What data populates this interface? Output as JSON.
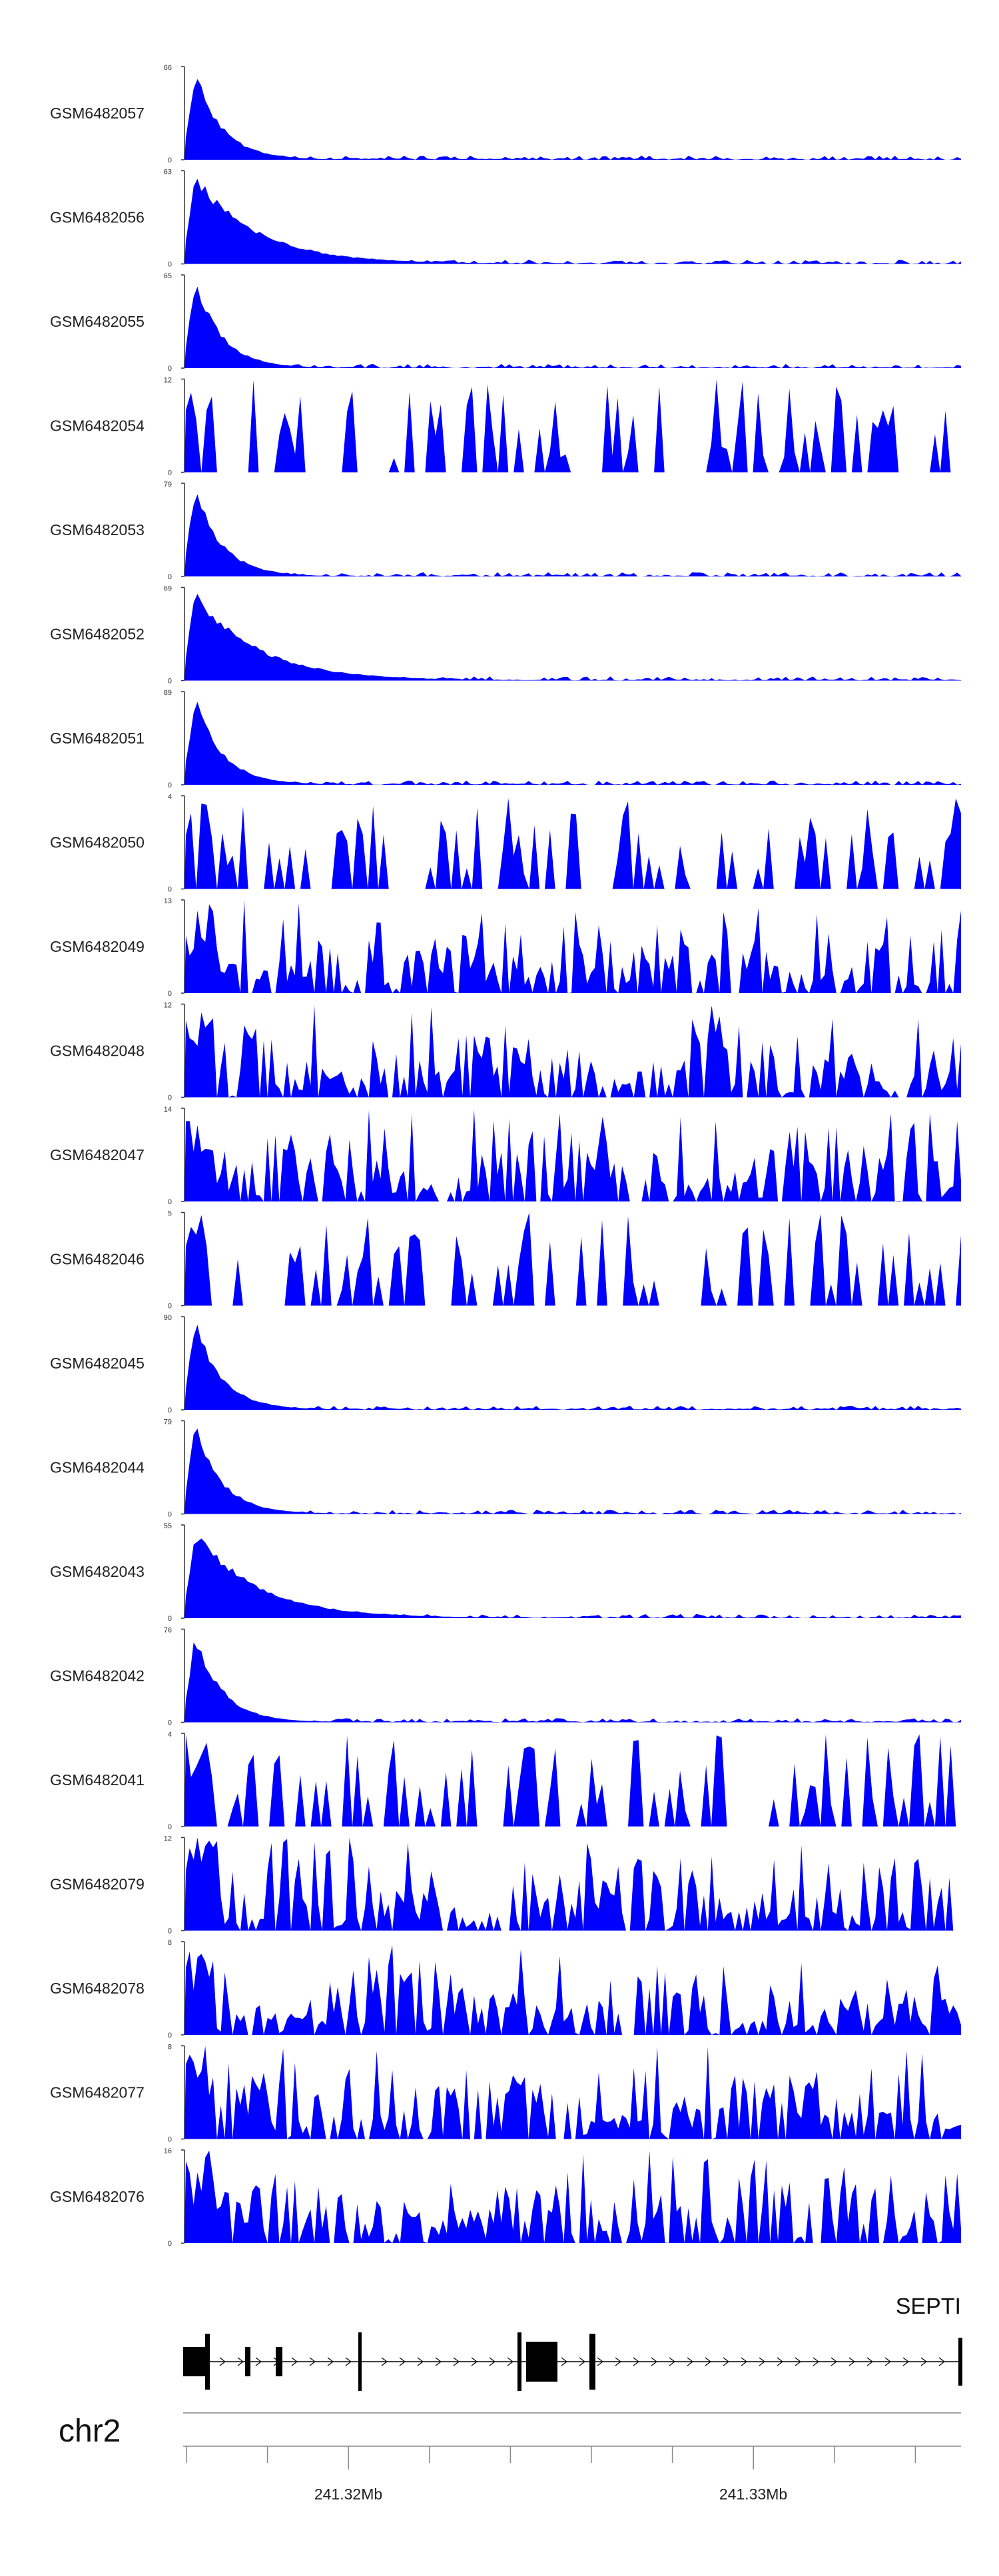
{
  "chart_data": {
    "type": "area",
    "color": "#0000ff",
    "tracks": [
      {
        "name": "GSM6482057",
        "max": 66,
        "pattern": "spike"
      },
      {
        "name": "GSM6482056",
        "max": 63,
        "pattern": "spike-broad"
      },
      {
        "name": "GSM6482055",
        "max": 65,
        "pattern": "spike"
      },
      {
        "name": "GSM6482054",
        "max": 12,
        "pattern": "sparse"
      },
      {
        "name": "GSM6482053",
        "max": 79,
        "pattern": "spike"
      },
      {
        "name": "GSM6482052",
        "max": 69,
        "pattern": "spike-broad"
      },
      {
        "name": "GSM6482051",
        "max": 89,
        "pattern": "spike"
      },
      {
        "name": "GSM6482050",
        "max": 4,
        "pattern": "sparse"
      },
      {
        "name": "GSM6482049",
        "max": 13,
        "pattern": "noisy"
      },
      {
        "name": "GSM6482048",
        "max": 12,
        "pattern": "noisy"
      },
      {
        "name": "GSM6482047",
        "max": 14,
        "pattern": "noisy"
      },
      {
        "name": "GSM6482046",
        "max": 5,
        "pattern": "sparse"
      },
      {
        "name": "GSM6482045",
        "max": 90,
        "pattern": "spike"
      },
      {
        "name": "GSM6482044",
        "max": 79,
        "pattern": "spike"
      },
      {
        "name": "GSM6482043",
        "max": 55,
        "pattern": "spike-broad"
      },
      {
        "name": "GSM6482042",
        "max": 76,
        "pattern": "spike"
      },
      {
        "name": "GSM6482041",
        "max": 4,
        "pattern": "sparse"
      },
      {
        "name": "GSM6482079",
        "max": 12,
        "pattern": "noisy"
      },
      {
        "name": "GSM6482078",
        "max": 8,
        "pattern": "noisy"
      },
      {
        "name": "GSM6482077",
        "max": 8,
        "pattern": "noisy"
      },
      {
        "name": "GSM6482076",
        "max": 16,
        "pattern": "noisy"
      }
    ],
    "ymin_label": "0",
    "gene": {
      "name": "SEPTI",
      "strand": "+"
    },
    "chromosome": "chr2",
    "x_ticks": [
      "241.32Mb",
      "241.33Mb"
    ]
  }
}
